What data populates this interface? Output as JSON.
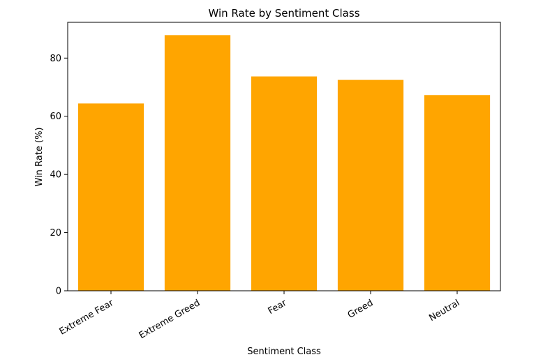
{
  "chart_data": {
    "type": "bar",
    "title": "Win Rate by Sentiment Class",
    "xlabel": "Sentiment Class",
    "ylabel": "Win Rate (%)",
    "categories": [
      "Extreme Fear",
      "Extreme Greed",
      "Fear",
      "Greed",
      "Neutral"
    ],
    "values": [
      64.4,
      87.9,
      73.7,
      72.5,
      67.3
    ],
    "ylim": [
      0,
      92.3
    ],
    "yticks": [
      0,
      20,
      40,
      60,
      80
    ],
    "ytick_labels": [
      "0",
      "20",
      "40",
      "60",
      "80"
    ],
    "xtick_rotation_deg": 30,
    "grid": false,
    "legend": false,
    "bar_color": "#ffa500"
  }
}
